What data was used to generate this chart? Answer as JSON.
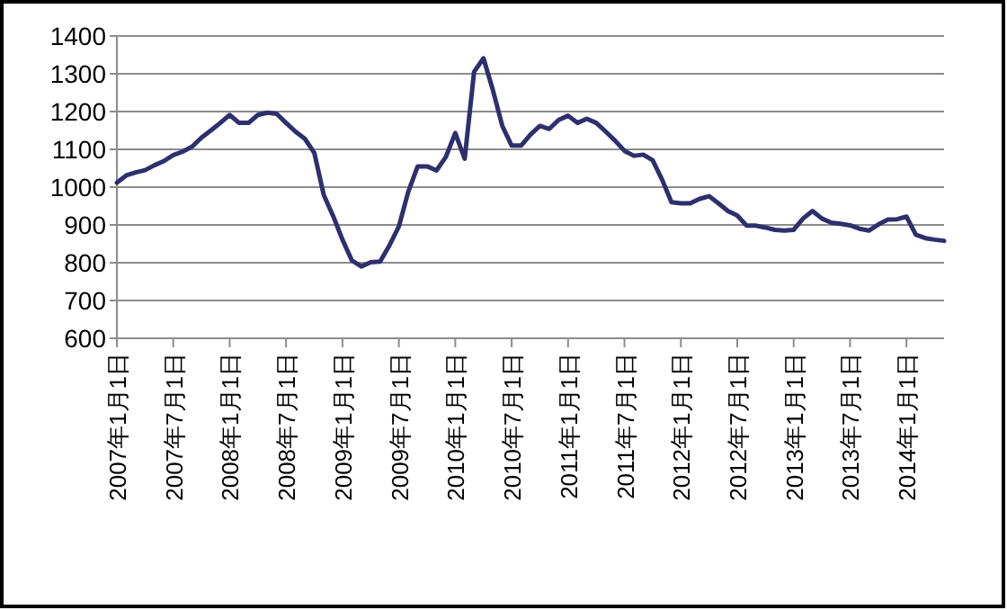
{
  "chart_data": {
    "type": "line",
    "categories": [
      "2007年1月1日",
      null,
      null,
      null,
      null,
      null,
      "2007年7月1日",
      null,
      null,
      null,
      null,
      null,
      "2008年1月1日",
      null,
      null,
      null,
      null,
      null,
      "2008年7月1日",
      null,
      null,
      null,
      null,
      null,
      "2009年1月1日",
      null,
      null,
      null,
      null,
      null,
      "2009年7月1日",
      null,
      null,
      null,
      null,
      null,
      "2010年1月1日",
      null,
      null,
      null,
      null,
      null,
      "2010年7月1日",
      null,
      null,
      null,
      null,
      null,
      "2011年1月1日",
      null,
      null,
      null,
      null,
      null,
      "2011年7月1日",
      null,
      null,
      null,
      null,
      null,
      "2012年1月1日",
      null,
      null,
      null,
      null,
      null,
      "2012年7月1日",
      null,
      null,
      null,
      null,
      null,
      "2013年1月1日",
      null,
      null,
      null,
      null,
      null,
      "2013年7月1日",
      null,
      null,
      null,
      null,
      null,
      "2014年1月1日",
      null,
      null,
      null,
      null
    ],
    "series": [
      {
        "color": "#2e2f6e",
        "values": [
          1012,
          1031,
          1039,
          1045,
          1058,
          1069,
          1085,
          1094,
          1107,
          1131,
          1150,
          1170,
          1191,
          1170,
          1170,
          1191,
          1197,
          1194,
          1170,
          1147,
          1128,
          1091,
          980,
          924,
          861,
          806,
          790,
          801,
          803,
          846,
          896,
          988,
          1055,
          1055,
          1044,
          1080,
          1143,
          1075,
          1305,
          1341,
          1257,
          1162,
          1110,
          1110,
          1139,
          1162,
          1154,
          1178,
          1189,
          1170,
          1181,
          1170,
          1147,
          1123,
          1096,
          1083,
          1086,
          1071,
          1020,
          960,
          957,
          957,
          969,
          976,
          957,
          937,
          925,
          898,
          898,
          893,
          887,
          885,
          887,
          917,
          937,
          917,
          906,
          903,
          899,
          890,
          885,
          901,
          914,
          915,
          922,
          874,
          865,
          861,
          858
        ]
      }
    ],
    "ylim": [
      600,
      1400
    ],
    "yticks": [
      600,
      700,
      800,
      900,
      1000,
      1100,
      1200,
      1300,
      1400
    ],
    "grid": "y",
    "marker": "none",
    "line_style": "solid"
  }
}
